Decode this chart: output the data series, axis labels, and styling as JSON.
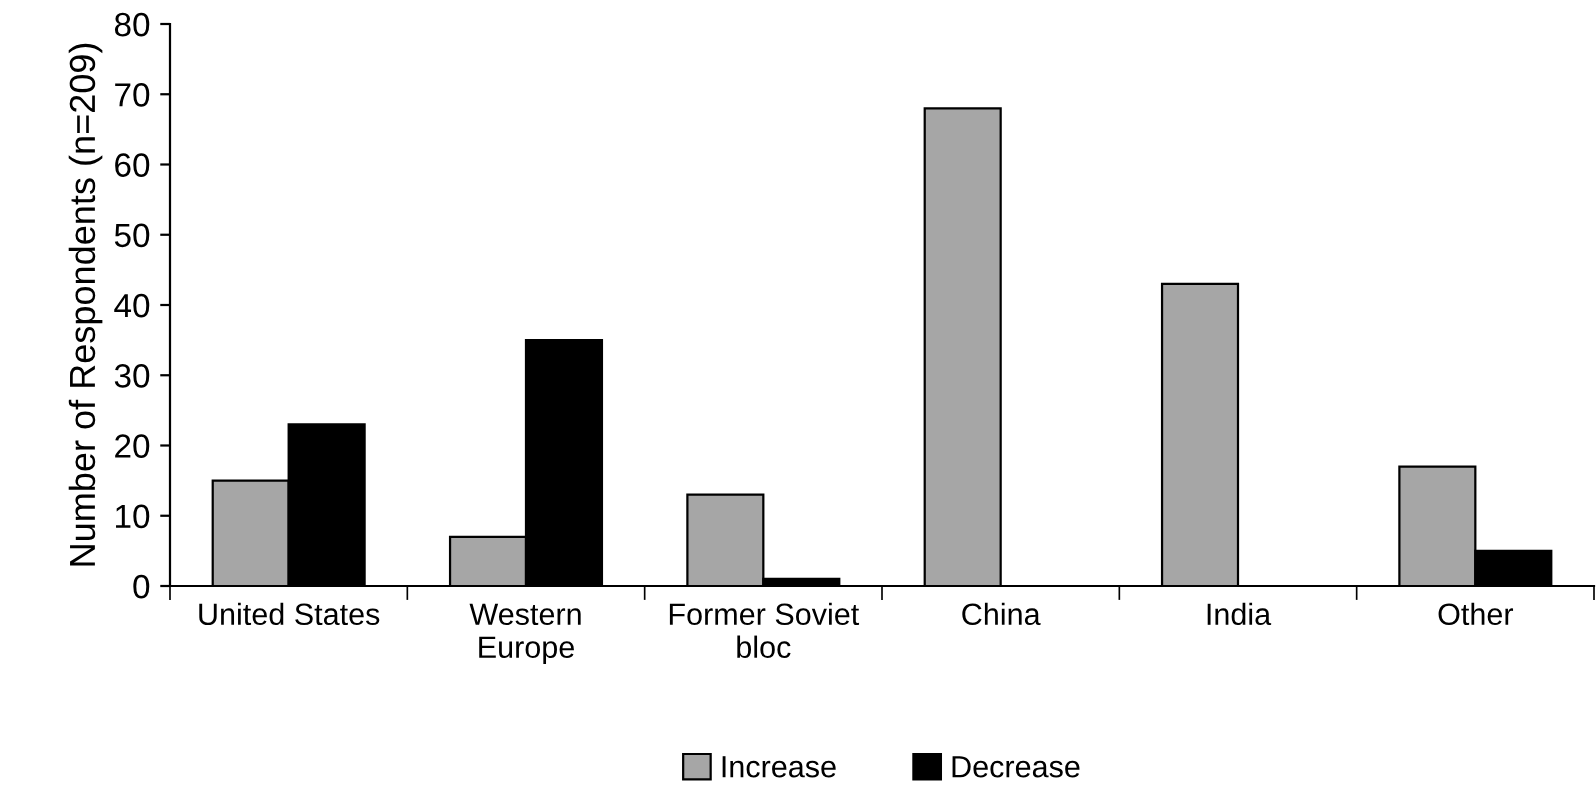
{
  "chart_data": {
    "type": "bar",
    "ylabel": "Number of Respondents (n=209)",
    "categories": [
      "United States",
      "Western\nEurope",
      "Former Soviet\nbloc",
      "China",
      "India",
      "Other"
    ],
    "series": [
      {
        "name": "Increase",
        "color": "#a6a6a6",
        "values": [
          15,
          7,
          13,
          68,
          43,
          17
        ]
      },
      {
        "name": "Decrease",
        "color": "#000000",
        "values": [
          23,
          35,
          1,
          0,
          0,
          5
        ]
      }
    ],
    "ylim": [
      0,
      80
    ],
    "yticks": [
      0,
      10,
      20,
      30,
      40,
      50,
      60,
      70,
      80
    ],
    "grid": false,
    "legend": "bottom"
  }
}
